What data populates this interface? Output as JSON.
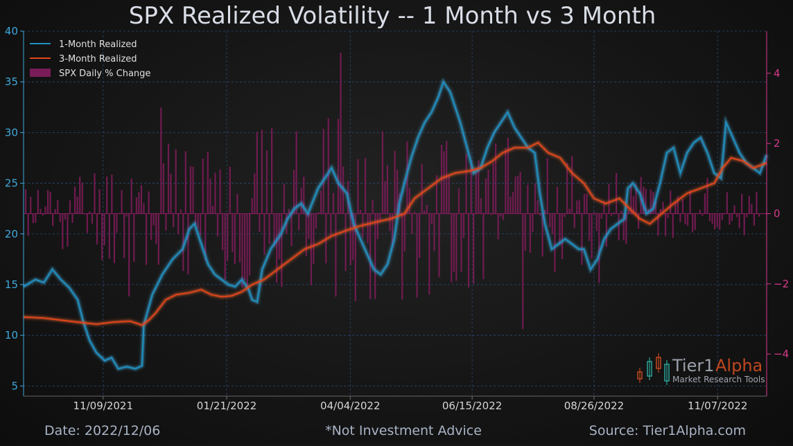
{
  "chart_data": {
    "type": "line",
    "title": "SPX Realized Volatility -- 1 Month vs 3 Month",
    "x_ticks": [
      "11/09/2021",
      "01/21/2022",
      "04/04/2022",
      "06/15/2022",
      "08/26/2022",
      "11/07/2022"
    ],
    "x_range": [
      "2021-09-23",
      "2022-12-06"
    ],
    "y_left": {
      "range": [
        4,
        40
      ],
      "ticks": [
        5,
        10,
        15,
        20,
        25,
        30,
        35,
        40
      ]
    },
    "y_right": {
      "range": [
        -5.2,
        5.2
      ],
      "ticks": [
        -4,
        -2,
        0,
        2,
        4
      ]
    },
    "grid": true,
    "legend_position": "top-left",
    "series": [
      {
        "name": "1-Month Realized",
        "color": "#1f90c2",
        "axis": "left",
        "points": [
          [
            "2021-09-23",
            14.8
          ],
          [
            "2021-09-30",
            15.5
          ],
          [
            "2021-10-05",
            15.2
          ],
          [
            "2021-10-10",
            16.5
          ],
          [
            "2021-10-15",
            15.5
          ],
          [
            "2021-10-20",
            14.7
          ],
          [
            "2021-10-25",
            13.5
          ],
          [
            "2021-10-28",
            11.5
          ],
          [
            "2021-11-01",
            9.5
          ],
          [
            "2021-11-05",
            8.3
          ],
          [
            "2021-11-10",
            7.5
          ],
          [
            "2021-11-14",
            7.8
          ],
          [
            "2021-11-18",
            6.7
          ],
          [
            "2021-11-23",
            6.9
          ],
          [
            "2021-11-28",
            6.7
          ],
          [
            "2021-12-02",
            7.0
          ],
          [
            "2021-12-03",
            11.0
          ],
          [
            "2021-12-08",
            14.0
          ],
          [
            "2021-12-14",
            16.0
          ],
          [
            "2021-12-20",
            17.5
          ],
          [
            "2021-12-26",
            18.5
          ],
          [
            "2021-12-30",
            20.5
          ],
          [
            "2022-01-02",
            21.0
          ],
          [
            "2022-01-06",
            19.0
          ],
          [
            "2022-01-10",
            17.0
          ],
          [
            "2022-01-14",
            16.0
          ],
          [
            "2022-01-18",
            15.5
          ],
          [
            "2022-01-22",
            15.0
          ],
          [
            "2022-01-26",
            14.8
          ],
          [
            "2022-01-30",
            15.5
          ],
          [
            "2022-02-03",
            14.5
          ],
          [
            "2022-02-05",
            13.5
          ],
          [
            "2022-02-08",
            13.3
          ],
          [
            "2022-02-11",
            16.5
          ],
          [
            "2022-02-16",
            18.5
          ],
          [
            "2022-02-22",
            20.0
          ],
          [
            "2022-02-26",
            21.5
          ],
          [
            "2022-03-02",
            22.5
          ],
          [
            "2022-03-06",
            23.0
          ],
          [
            "2022-03-10",
            22.0
          ],
          [
            "2022-03-16",
            24.5
          ],
          [
            "2022-03-20",
            25.5
          ],
          [
            "2022-03-24",
            26.5
          ],
          [
            "2022-03-28",
            25.0
          ],
          [
            "2022-04-02",
            24.0
          ],
          [
            "2022-04-06",
            21.0
          ],
          [
            "2022-04-10",
            19.5
          ],
          [
            "2022-04-14",
            18.0
          ],
          [
            "2022-04-18",
            16.5
          ],
          [
            "2022-04-22",
            16.0
          ],
          [
            "2022-04-26",
            17.0
          ],
          [
            "2022-04-30",
            19.5
          ],
          [
            "2022-05-03",
            23.0
          ],
          [
            "2022-05-06",
            25.0
          ],
          [
            "2022-05-10",
            27.5
          ],
          [
            "2022-05-14",
            29.5
          ],
          [
            "2022-05-18",
            31.0
          ],
          [
            "2022-05-22",
            32.0
          ],
          [
            "2022-05-26",
            33.5
          ],
          [
            "2022-05-29",
            35.0
          ],
          [
            "2022-06-02",
            34.0
          ],
          [
            "2022-06-05",
            32.5
          ],
          [
            "2022-06-08",
            31.0
          ],
          [
            "2022-06-12",
            28.5
          ],
          [
            "2022-06-16",
            26.0
          ],
          [
            "2022-06-20",
            26.5
          ],
          [
            "2022-06-24",
            28.5
          ],
          [
            "2022-06-28",
            30.0
          ],
          [
            "2022-07-02",
            31.0
          ],
          [
            "2022-07-06",
            32.0
          ],
          [
            "2022-07-10",
            30.5
          ],
          [
            "2022-07-14",
            29.5
          ],
          [
            "2022-07-18",
            28.5
          ],
          [
            "2022-07-22",
            28.0
          ],
          [
            "2022-07-25",
            24.0
          ],
          [
            "2022-07-28",
            21.0
          ],
          [
            "2022-08-01",
            18.5
          ],
          [
            "2022-08-05",
            19.0
          ],
          [
            "2022-08-09",
            19.5
          ],
          [
            "2022-08-13",
            19.0
          ],
          [
            "2022-08-17",
            18.5
          ],
          [
            "2022-08-20",
            18.5
          ],
          [
            "2022-08-24",
            16.5
          ],
          [
            "2022-08-28",
            17.5
          ],
          [
            "2022-09-01",
            19.5
          ],
          [
            "2022-09-05",
            20.5
          ],
          [
            "2022-09-09",
            21.0
          ],
          [
            "2022-09-13",
            21.5
          ],
          [
            "2022-09-15",
            24.5
          ],
          [
            "2022-09-18",
            25.0
          ],
          [
            "2022-09-22",
            24.0
          ],
          [
            "2022-09-26",
            22.0
          ],
          [
            "2022-09-30",
            22.5
          ],
          [
            "2022-10-04",
            25.0
          ],
          [
            "2022-10-08",
            28.0
          ],
          [
            "2022-10-12",
            28.5
          ],
          [
            "2022-10-16",
            26.0
          ],
          [
            "2022-10-20",
            28.0
          ],
          [
            "2022-10-24",
            29.0
          ],
          [
            "2022-10-28",
            29.5
          ],
          [
            "2022-11-01",
            28.0
          ],
          [
            "2022-11-05",
            26.0
          ],
          [
            "2022-11-09",
            25.5
          ],
          [
            "2022-11-12",
            31.0
          ],
          [
            "2022-11-16",
            29.5
          ],
          [
            "2022-11-20",
            28.0
          ],
          [
            "2022-11-24",
            27.0
          ],
          [
            "2022-11-28",
            26.5
          ],
          [
            "2022-12-02",
            26.0
          ],
          [
            "2022-12-06",
            27.8
          ]
        ]
      },
      {
        "name": "3-Month Realized",
        "color": "#e0451c",
        "axis": "left",
        "points": [
          [
            "2021-09-23",
            11.8
          ],
          [
            "2021-10-05",
            11.7
          ],
          [
            "2021-10-15",
            11.5
          ],
          [
            "2021-10-25",
            11.3
          ],
          [
            "2021-11-05",
            11.1
          ],
          [
            "2021-11-15",
            11.3
          ],
          [
            "2021-11-25",
            11.4
          ],
          [
            "2021-12-02",
            11.0
          ],
          [
            "2021-12-06",
            11.5
          ],
          [
            "2021-12-10",
            12.2
          ],
          [
            "2021-12-16",
            13.5
          ],
          [
            "2021-12-22",
            14.0
          ],
          [
            "2021-12-30",
            14.2
          ],
          [
            "2022-01-06",
            14.5
          ],
          [
            "2022-01-12",
            14.0
          ],
          [
            "2022-01-18",
            13.8
          ],
          [
            "2022-01-24",
            13.9
          ],
          [
            "2022-01-30",
            14.3
          ],
          [
            "2022-02-05",
            15.0
          ],
          [
            "2022-02-12",
            15.5
          ],
          [
            "2022-02-20",
            16.5
          ],
          [
            "2022-02-28",
            17.5
          ],
          [
            "2022-03-08",
            18.5
          ],
          [
            "2022-03-16",
            19.0
          ],
          [
            "2022-03-24",
            19.8
          ],
          [
            "2022-04-01",
            20.3
          ],
          [
            "2022-04-10",
            20.8
          ],
          [
            "2022-04-20",
            21.2
          ],
          [
            "2022-04-28",
            21.5
          ],
          [
            "2022-05-06",
            22.0
          ],
          [
            "2022-05-12",
            23.5
          ],
          [
            "2022-05-20",
            24.5
          ],
          [
            "2022-05-28",
            25.5
          ],
          [
            "2022-06-05",
            26.0
          ],
          [
            "2022-06-13",
            26.2
          ],
          [
            "2022-06-20",
            26.5
          ],
          [
            "2022-06-27",
            27.2
          ],
          [
            "2022-07-03",
            28.0
          ],
          [
            "2022-07-10",
            28.5
          ],
          [
            "2022-07-18",
            28.5
          ],
          [
            "2022-07-24",
            29.0
          ],
          [
            "2022-07-30",
            28.0
          ],
          [
            "2022-08-06",
            27.5
          ],
          [
            "2022-08-13",
            26.0
          ],
          [
            "2022-08-20",
            25.0
          ],
          [
            "2022-08-26",
            23.5
          ],
          [
            "2022-09-02",
            23.0
          ],
          [
            "2022-09-10",
            23.5
          ],
          [
            "2022-09-16",
            22.5
          ],
          [
            "2022-09-22",
            21.5
          ],
          [
            "2022-09-28",
            21.0
          ],
          [
            "2022-10-05",
            22.0
          ],
          [
            "2022-10-12",
            23.0
          ],
          [
            "2022-10-20",
            24.0
          ],
          [
            "2022-10-28",
            24.5
          ],
          [
            "2022-11-05",
            25.0
          ],
          [
            "2022-11-10",
            26.5
          ],
          [
            "2022-11-15",
            27.5
          ],
          [
            "2022-11-22",
            27.2
          ],
          [
            "2022-11-28",
            26.5
          ],
          [
            "2022-12-06",
            27.0
          ]
        ]
      },
      {
        "name": "SPX Daily % Change",
        "color": "#7a1c57",
        "axis": "right",
        "type": "bar"
      }
    ]
  },
  "brand": {
    "name1": "Tier1",
    "name2": "Alpha",
    "tagline": "Market  Research Tools"
  },
  "footer": {
    "date": "Date: 2022/12/06",
    "disclaimer": "*Not Investment Advice",
    "source": "Source: Tier1Alpha.com"
  }
}
